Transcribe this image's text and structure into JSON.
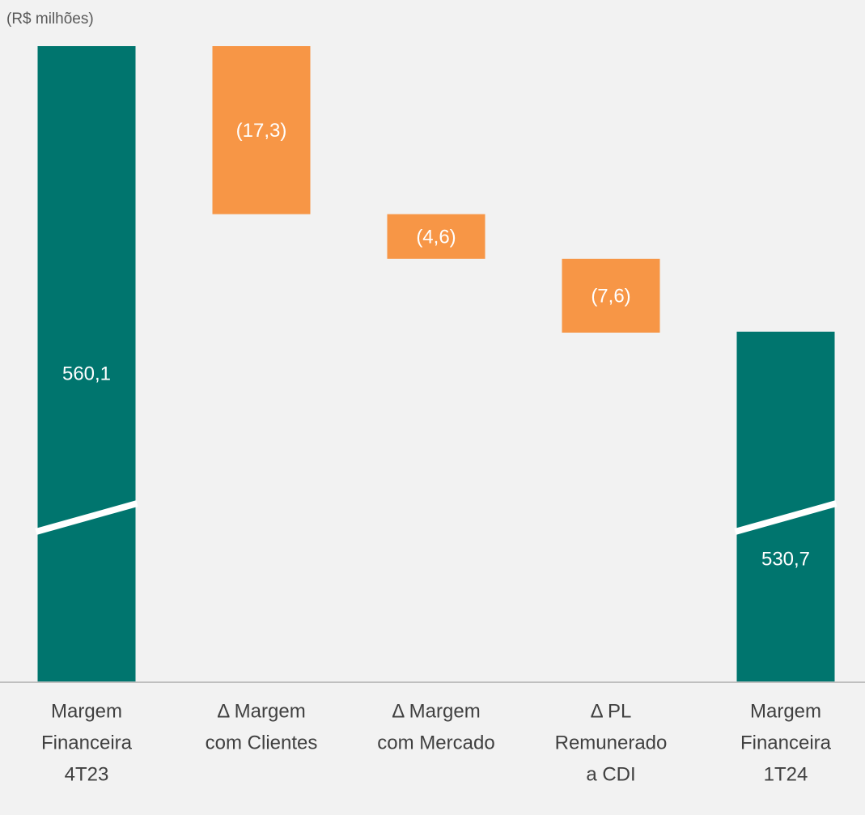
{
  "chart_data": {
    "type": "waterfall",
    "subtitle": "(R$ milhões)",
    "categories": [
      [
        "Margem",
        "Financeira",
        "4T23"
      ],
      [
        "Δ Margem",
        "com Clientes"
      ],
      [
        "Δ Margem",
        "com Mercado"
      ],
      [
        "Δ PL",
        "Remunerado",
        "a CDI"
      ],
      [
        "Margem",
        "Financeira",
        "1T24"
      ]
    ],
    "values": [
      560.1,
      -17.3,
      -4.6,
      -7.6,
      530.7
    ],
    "value_labels": [
      "560,1",
      "(17,3)",
      "(4,6)",
      "(7,6)",
      "530,7"
    ],
    "colors": [
      "#00756e",
      "#f79646",
      "#f79646",
      "#f79646",
      "#00756e"
    ],
    "axis_break": true
  }
}
